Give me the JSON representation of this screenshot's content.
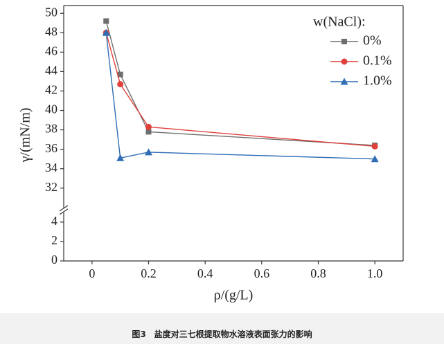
{
  "chart_data": {
    "type": "line",
    "x_label": "ρ/(g/L)",
    "y_label": "γ/(mN/m)",
    "caption": "图3　盐度对三七根提取物水溶液表面张力的影响",
    "legend_title": "w(NaCl):",
    "legend": "upper right",
    "x": [
      0.05,
      0.1,
      0.2,
      1
    ],
    "xlim": [
      -0.1,
      1.1
    ],
    "xticks": [
      0,
      0.2,
      0.4,
      0.6,
      0.8,
      {
        "value": 1,
        "label": "1.0"
      }
    ],
    "y_segments": [
      {
        "ylim": [
          0,
          5
        ],
        "yticks": [
          0,
          2,
          4
        ]
      },
      {
        "ylim": [
          30,
          50.8
        ],
        "yticks": [
          32,
          34,
          36,
          38,
          40,
          42,
          44,
          46,
          48,
          50
        ]
      }
    ],
    "series": [
      {
        "name": "0%",
        "color": "#6e6e6e",
        "marker": "square",
        "values": [
          49.2,
          43.7,
          37.8,
          36.4
        ]
      },
      {
        "name": "0.1%",
        "color": "#e0413a",
        "marker": "circle",
        "values": [
          48.0,
          42.7,
          38.3,
          36.3
        ]
      },
      {
        "name": "1.0%",
        "color": "#2e6db4",
        "marker": "triangle",
        "values": [
          48.0,
          35.1,
          35.7,
          35.0
        ]
      }
    ]
  }
}
